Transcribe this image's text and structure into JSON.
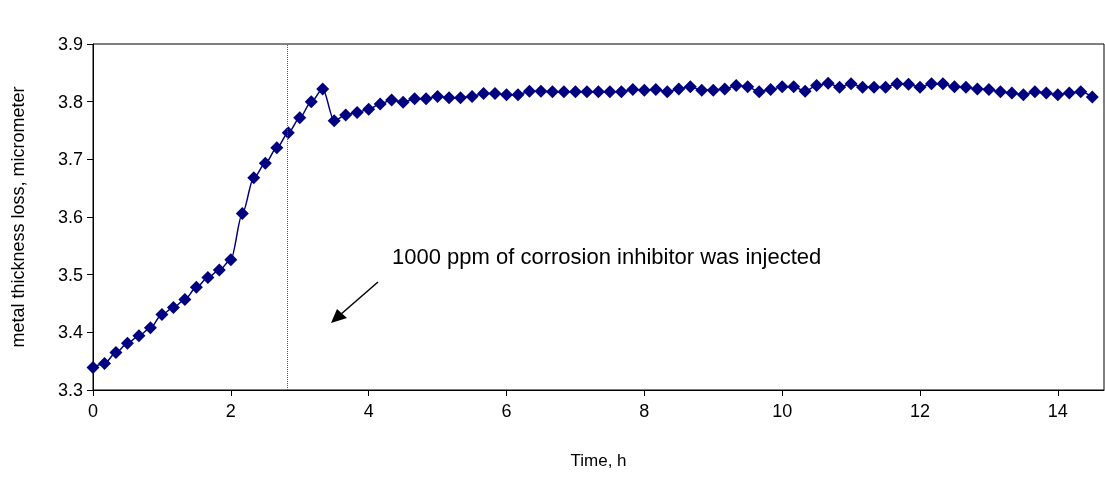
{
  "chart_data": {
    "type": "line",
    "xlabel": "Time, h",
    "ylabel": "metal thickness loss, micrometer",
    "x": [
      0,
      0.167,
      0.333,
      0.5,
      0.667,
      0.833,
      1,
      1.167,
      1.333,
      1.5,
      1.667,
      1.833,
      2,
      2.167,
      2.333,
      2.5,
      2.667,
      2.833,
      3,
      3.167,
      3.333,
      3.5,
      3.667,
      3.833,
      4,
      4.167,
      4.333,
      4.5,
      4.667,
      4.833,
      5,
      5.167,
      5.333,
      5.5,
      5.667,
      5.833,
      6,
      6.167,
      6.333,
      6.5,
      6.667,
      6.833,
      7,
      7.167,
      7.333,
      7.5,
      7.667,
      7.833,
      8,
      8.167,
      8.333,
      8.5,
      8.667,
      8.833,
      9,
      9.167,
      9.333,
      9.5,
      9.667,
      9.833,
      10,
      10.167,
      10.333,
      10.5,
      10.667,
      10.833,
      11,
      11.167,
      11.333,
      11.5,
      11.667,
      11.833,
      12,
      12.167,
      12.333,
      12.5,
      12.667,
      12.833,
      13,
      13.167,
      13.333,
      13.5,
      13.667,
      13.833,
      14,
      14.167,
      14.333,
      14.5
    ],
    "series": [
      {
        "color": "#000080",
        "values": [
          3.339,
          3.346,
          3.365,
          3.381,
          3.394,
          3.408,
          3.431,
          3.443,
          3.457,
          3.478,
          3.495,
          3.508,
          3.526,
          3.606,
          3.668,
          3.693,
          3.72,
          3.746,
          3.772,
          3.8,
          3.822,
          3.767,
          3.777,
          3.781,
          3.787,
          3.796,
          3.803,
          3.799,
          3.805,
          3.805,
          3.809,
          3.807,
          3.807,
          3.809,
          3.814,
          3.814,
          3.812,
          3.812,
          3.818,
          3.818,
          3.817,
          3.817,
          3.817,
          3.817,
          3.817,
          3.817,
          3.817,
          3.821,
          3.82,
          3.821,
          3.817,
          3.822,
          3.826,
          3.82,
          3.82,
          3.822,
          3.828,
          3.826,
          3.817,
          3.821,
          3.826,
          3.826,
          3.818,
          3.828,
          3.832,
          3.825,
          3.831,
          3.825,
          3.825,
          3.825,
          3.831,
          3.83,
          3.825,
          3.831,
          3.831,
          3.826,
          3.825,
          3.822,
          3.821,
          3.817,
          3.815,
          3.812,
          3.817,
          3.815,
          3.812,
          3.815,
          3.817,
          3.808
        ]
      }
    ],
    "xlim": [
      0,
      14.67
    ],
    "xticks": [
      0,
      2,
      4,
      6,
      8,
      10,
      12,
      14
    ],
    "ylim": [
      3.3,
      3.9
    ],
    "yticks": [
      3.3,
      3.4,
      3.5,
      3.6,
      3.7,
      3.8,
      3.9
    ],
    "grid": false,
    "marker": "diamond",
    "line_style": "solid",
    "ref_lines": [
      {
        "axis": "x",
        "value": 2.82,
        "color": "#555555",
        "line_style": "dotted"
      }
    ],
    "annotations": [
      "1000 ppm of corrosion inhibitor was injected"
    ]
  }
}
